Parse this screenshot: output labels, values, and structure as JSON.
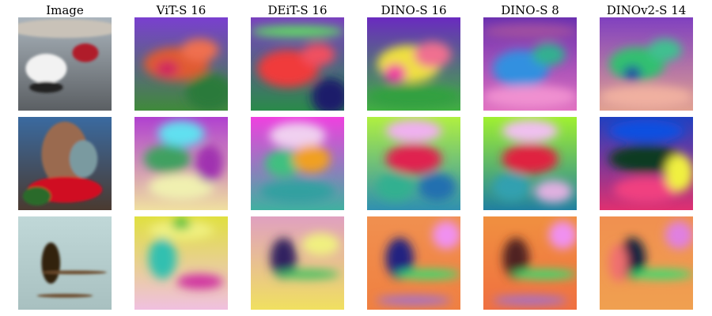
{
  "columns": [
    "Image",
    "ViT-S 16",
    "DEiT-S 16",
    "DINO-S 16",
    "DINO-S 8",
    "DINOv2-S 14"
  ]
}
